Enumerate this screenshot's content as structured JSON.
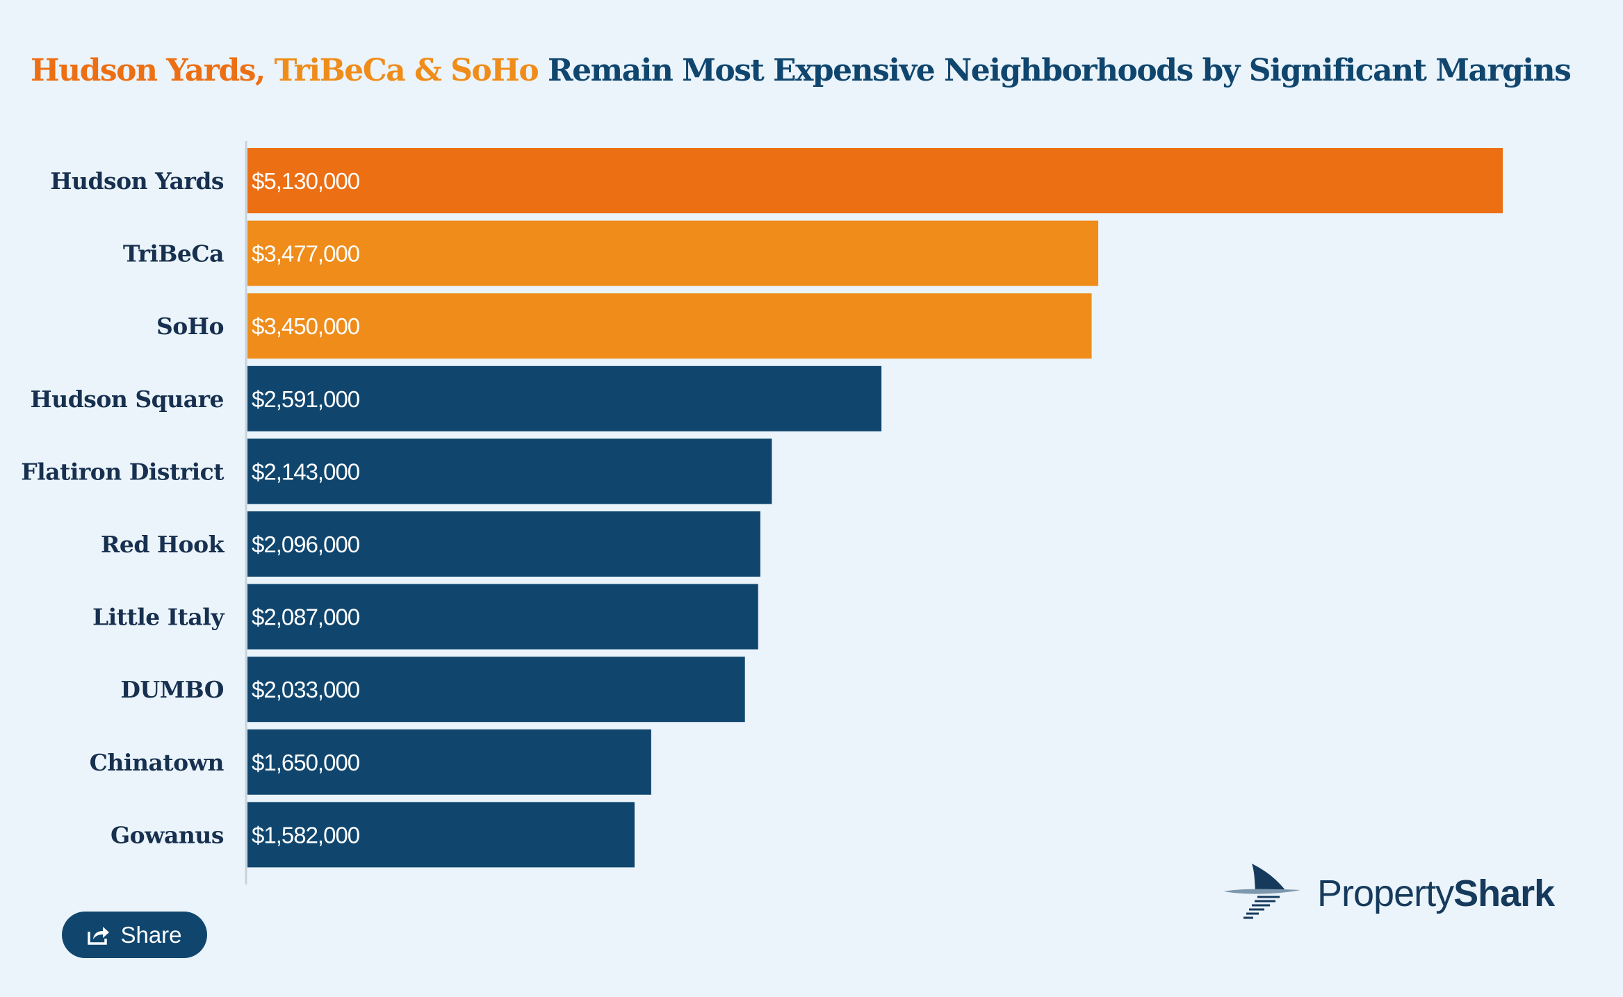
{
  "title": {
    "highlight1": "Hudson Yards,",
    "highlight2": "TriBeCa & SoHo",
    "rest": "Remain Most Expensive Neighborhoods by Significant Margins"
  },
  "colors": {
    "background": "#ebf4fb",
    "top": "#ed6f14",
    "second": "#ef8c1a",
    "default": "#10466e",
    "title_text": "#10466e"
  },
  "chart_data": {
    "type": "bar",
    "orientation": "horizontal",
    "categories": [
      "Hudson Yards",
      "TriBeCa",
      "SoHo",
      "Hudson Square",
      "Flatiron District",
      "Red Hook",
      "Little Italy",
      "DUMBO",
      "Chinatown",
      "Gowanus"
    ],
    "values": [
      5130000,
      3477000,
      3450000,
      2591000,
      2143000,
      2096000,
      2087000,
      2033000,
      1650000,
      1582000
    ],
    "data_labels": [
      "$5,130,000",
      "$3,477,000",
      "$3,450,000",
      "$2,591,000",
      "$2,143,000",
      "$2,096,000",
      "$2,087,000",
      "$2,033,000",
      "$1,650,000",
      "$1,582,000"
    ],
    "bar_colors": [
      "#ed6f14",
      "#ef8c1a",
      "#ef8c1a",
      "#10466e",
      "#10466e",
      "#10466e",
      "#10466e",
      "#10466e",
      "#10466e",
      "#10466e"
    ],
    "xlim": [
      0,
      5130000
    ],
    "grid": false,
    "legend": "none"
  },
  "share": {
    "label": "Share",
    "icon": "share-icon"
  },
  "logo": {
    "text_light": "Property",
    "text_bold": "Shark",
    "icon": "shark-fin-icon"
  }
}
